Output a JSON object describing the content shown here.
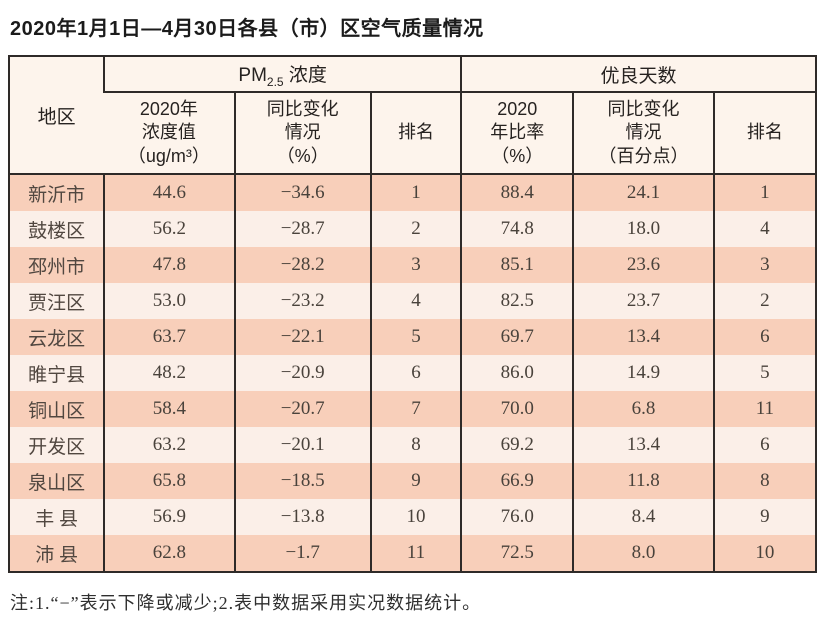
{
  "title": "2020年1月1日—4月30日各县（市）区空气质量情况",
  "table": {
    "region_header": "地区",
    "group1": {
      "prefix": "PM",
      "sub": "2.5",
      "suffix": " 浓度"
    },
    "group2": "优良天数",
    "subheaders": {
      "conc": [
        "2020年",
        "浓度值",
        "（ug/m³）"
      ],
      "chg1": [
        "同比变化",
        "情况",
        "（%）"
      ],
      "rank1": [
        "排名"
      ],
      "ratio": [
        "2020",
        "年比率",
        "（%）"
      ],
      "chg2": [
        "同比变化",
        "情况",
        "（百分点）"
      ],
      "rank2": [
        "排名"
      ]
    },
    "rows": [
      [
        "新沂市",
        "44.6",
        "−34.6",
        "1",
        "88.4",
        "24.1",
        "1"
      ],
      [
        "鼓楼区",
        "56.2",
        "−28.7",
        "2",
        "74.8",
        "18.0",
        "4"
      ],
      [
        "邳州市",
        "47.8",
        "−28.2",
        "3",
        "85.1",
        "23.6",
        "3"
      ],
      [
        "贾汪区",
        "53.0",
        "−23.2",
        "4",
        "82.5",
        "23.7",
        "2"
      ],
      [
        "云龙区",
        "63.7",
        "−22.1",
        "5",
        "69.7",
        "13.4",
        "6"
      ],
      [
        "睢宁县",
        "48.2",
        "−20.9",
        "6",
        "86.0",
        "14.9",
        "5"
      ],
      [
        "铜山区",
        "58.4",
        "−20.7",
        "7",
        "70.0",
        "6.8",
        "11"
      ],
      [
        "开发区",
        "63.2",
        "−20.1",
        "8",
        "69.2",
        "13.4",
        "6"
      ],
      [
        "泉山区",
        "65.8",
        "−18.5",
        "9",
        "66.9",
        "11.8",
        "8"
      ],
      [
        "丰 县",
        "56.9",
        "−13.8",
        "10",
        "76.0",
        "8.4",
        "9"
      ],
      [
        "沛 县",
        "62.8",
        "−1.7",
        "11",
        "72.5",
        "8.0",
        "10"
      ]
    ]
  },
  "note": "注:1.“−”表示下降或减少;2.表中数据采用实况数据统计。",
  "colors": {
    "row_odd": "#f8cfba",
    "row_even": "#fbefe8",
    "header_bg": "#fdf4ec",
    "border": "#2e2a28"
  }
}
